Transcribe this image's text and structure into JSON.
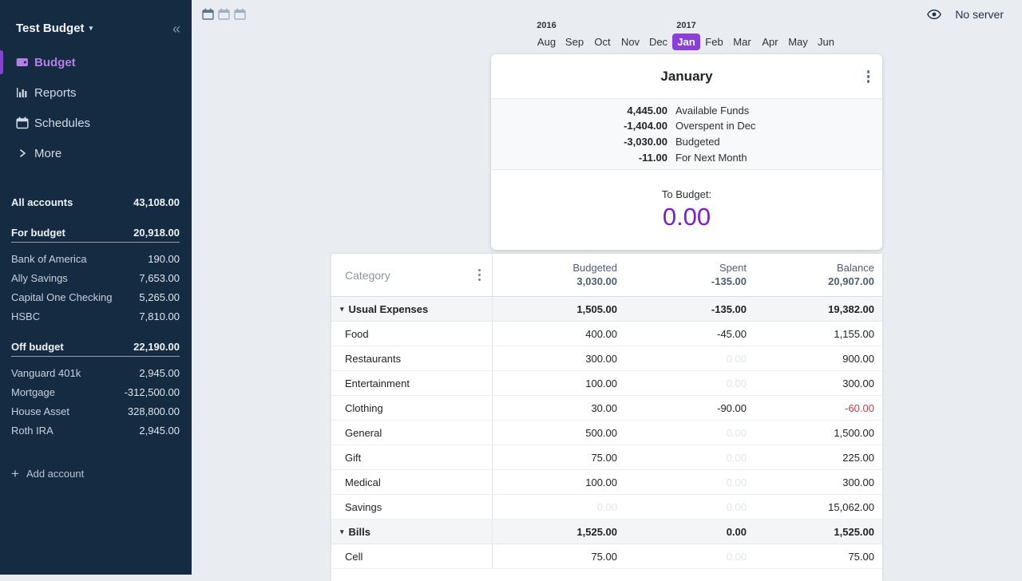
{
  "colors": {
    "accent": "#8a3fd8",
    "to_budget": "#7a1fc9",
    "negative": "#cc3c49",
    "sidebar_bg": "#152b41"
  },
  "topbar": {
    "no_server": "No server"
  },
  "sidebar": {
    "title": "Test Budget",
    "nav": [
      {
        "label": "Budget",
        "icon": "wallet-icon",
        "active": true
      },
      {
        "label": "Reports",
        "icon": "bar-chart-icon",
        "active": false
      },
      {
        "label": "Schedules",
        "icon": "calendar-icon",
        "active": false
      },
      {
        "label": "More",
        "icon": "chevron-right-icon",
        "active": false
      }
    ],
    "all_accounts": {
      "label": "All accounts",
      "value": "43,108.00"
    },
    "groups": [
      {
        "label": "For budget",
        "value": "20,918.00",
        "accounts": [
          {
            "name": "Bank of America",
            "value": "190.00"
          },
          {
            "name": "Ally Savings",
            "value": "7,653.00"
          },
          {
            "name": "Capital One Checking",
            "value": "5,265.00"
          },
          {
            "name": "HSBC",
            "value": "7,810.00"
          }
        ]
      },
      {
        "label": "Off budget",
        "value": "22,190.00",
        "accounts": [
          {
            "name": "Vanguard 401k",
            "value": "2,945.00"
          },
          {
            "name": "Mortgage",
            "value": "-312,500.00"
          },
          {
            "name": "House Asset",
            "value": "328,800.00"
          },
          {
            "name": "Roth IRA",
            "value": "2,945.00"
          }
        ]
      }
    ],
    "add_account": "Add account"
  },
  "month_picker": {
    "years": [
      {
        "label": "2016",
        "month_index": 0
      },
      {
        "label": "2017",
        "month_index": 5
      }
    ],
    "months": [
      "Aug",
      "Sep",
      "Oct",
      "Nov",
      "Dec",
      "Jan",
      "Feb",
      "Mar",
      "Apr",
      "May",
      "Jun"
    ],
    "selected": "Jan"
  },
  "summary_card": {
    "title": "January",
    "rows": [
      {
        "value": "4,445.00",
        "label": "Available Funds"
      },
      {
        "value": "-1,404.00",
        "label": "Overspent in Dec"
      },
      {
        "value": "-3,030.00",
        "label": "Budgeted"
      },
      {
        "value": "-11.00",
        "label": "For Next Month"
      }
    ],
    "to_budget_label": "To Budget:",
    "to_budget_value": "0.00"
  },
  "table": {
    "category_header": "Category",
    "columns": [
      {
        "label": "Budgeted",
        "total": "3,030.00"
      },
      {
        "label": "Spent",
        "total": "-135.00"
      },
      {
        "label": "Balance",
        "total": "20,907.00"
      }
    ],
    "rows": [
      {
        "type": "group",
        "name": "Usual Expenses",
        "budgeted": "1,505.00",
        "spent": "-135.00",
        "balance": "19,382.00"
      },
      {
        "type": "item",
        "name": "Food",
        "budgeted": "400.00",
        "spent": "-45.00",
        "balance": "1,155.00"
      },
      {
        "type": "item",
        "name": "Restaurants",
        "budgeted": "300.00",
        "spent": "0.00",
        "spent_faint": true,
        "balance": "900.00"
      },
      {
        "type": "item",
        "name": "Entertainment",
        "budgeted": "100.00",
        "spent": "0.00",
        "spent_faint": true,
        "balance": "300.00"
      },
      {
        "type": "item",
        "name": "Clothing",
        "budgeted": "30.00",
        "spent": "-90.00",
        "balance": "-60.00",
        "balance_negative": true
      },
      {
        "type": "item",
        "name": "General",
        "budgeted": "500.00",
        "spent": "0.00",
        "spent_faint": true,
        "balance": "1,500.00"
      },
      {
        "type": "item",
        "name": "Gift",
        "budgeted": "75.00",
        "spent": "0.00",
        "spent_faint": true,
        "balance": "225.00"
      },
      {
        "type": "item",
        "name": "Medical",
        "budgeted": "100.00",
        "spent": "0.00",
        "spent_faint": true,
        "balance": "300.00"
      },
      {
        "type": "item",
        "name": "Savings",
        "budgeted": "0.00",
        "budgeted_faint": true,
        "spent": "0.00",
        "spent_faint": true,
        "balance": "15,062.00"
      },
      {
        "type": "group",
        "name": "Bills",
        "budgeted": "1,525.00",
        "spent": "0.00",
        "balance": "1,525.00"
      },
      {
        "type": "item",
        "name": "Cell",
        "budgeted": "75.00",
        "spent": "0.00",
        "spent_faint": true,
        "balance": "75.00"
      }
    ]
  }
}
